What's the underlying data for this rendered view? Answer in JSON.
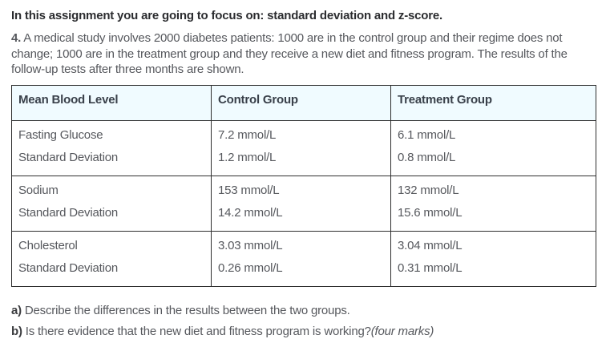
{
  "page": {
    "heading": "In this assignment you are going to focus on: standard deviation and z-score.",
    "question_number": "4.",
    "question_text": " A medical study involves 2000 diabetes patients: 1000 are in the control group and their regime does not change; 1000 are in the treatment group and they receive a new diet and fitness program. The results of the follow-up tests after three months are shown."
  },
  "table": {
    "headers": [
      "Mean Blood Level",
      "Control Group",
      "Treatment Group"
    ],
    "rows": [
      {
        "measure": "Fasting Glucose",
        "sd_label": "Standard Deviation",
        "control_mean": "7.2 mmol/L",
        "control_sd": "1.2 mmol/L",
        "treatment_mean": "6.1 mmol/L",
        "treatment_sd": "0.8 mmol/L"
      },
      {
        "measure": "Sodium",
        "sd_label": "Standard Deviation",
        "control_mean": "153 mmol/L",
        "control_sd": "14.2 mmol/L",
        "treatment_mean": "132 mmol/L",
        "treatment_sd": "15.6 mmol/L"
      },
      {
        "measure": "Cholesterol",
        "sd_label": "Standard Deviation",
        "control_mean": "3.03 mmol/L",
        "control_sd": "0.26 mmol/L",
        "treatment_mean": "3.04 mmol/L",
        "treatment_sd": "0.31 mmol/L"
      }
    ]
  },
  "parts": {
    "a_label": "a)",
    "a_text": " Describe the differences in the results between the two groups.",
    "b_label": "b)",
    "b_text": " Is there evidence that the new diet and fitness program is working?",
    "b_marks": "(four marks)"
  },
  "colors": {
    "header_background": "#f0fbff",
    "table_border": "#2e2e2e",
    "body_text": "#56585d",
    "heading_text": "#2b2c2f"
  }
}
